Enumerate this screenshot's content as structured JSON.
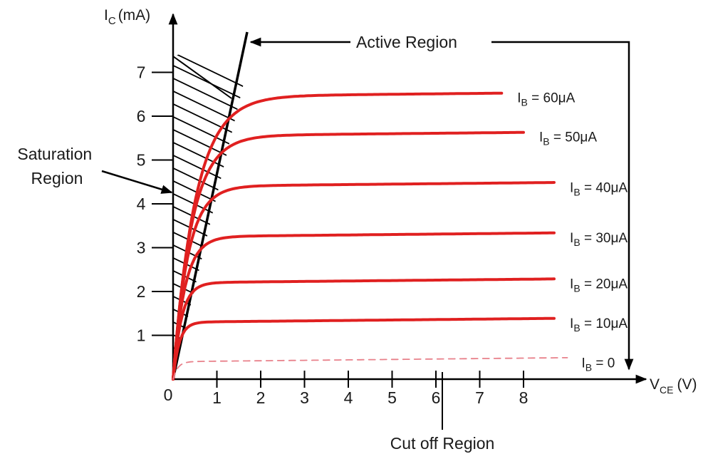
{
  "chart_data": {
    "type": "line",
    "xlabel": "VCE (V)",
    "xlabel_main": "V",
    "xlabel_sub": "CE",
    "xlabel_unit": "(V)",
    "ylabel": "IC (mA)",
    "ylabel_main": "I",
    "ylabel_sub": "C",
    "ylabel_unit": "(mA)",
    "origin_label": "0",
    "x_ticks": [
      "1",
      "2",
      "3",
      "4",
      "5",
      "6",
      "7",
      "8"
    ],
    "y_ticks": [
      "1",
      "2",
      "3",
      "4",
      "5",
      "6",
      "7"
    ],
    "xlim": [
      0,
      8
    ],
    "ylim": [
      0,
      7
    ],
    "grid": false,
    "legend": "none",
    "curve_color": "#e02020",
    "series": [
      {
        "name": "IB = 60μA",
        "label_main": "I",
        "label_sub": "B",
        "label_rest": " = 60μA",
        "ic_sat": 6.45,
        "knee_vce": 1.45,
        "vce_end": 7.5,
        "style": "solid"
      },
      {
        "name": "IB = 50μA",
        "label_main": "I",
        "label_sub": "B",
        "label_rest": " = 50μA",
        "ic_sat": 5.55,
        "knee_vce": 1.2,
        "vce_end": 8.0,
        "style": "solid"
      },
      {
        "name": "IB = 40μA",
        "label_main": "I",
        "label_sub": "B",
        "label_rest": " = 40μA",
        "ic_sat": 4.4,
        "knee_vce": 0.95,
        "vce_end": 8.7,
        "style": "solid"
      },
      {
        "name": "IB = 30μA",
        "label_main": "I",
        "label_sub": "B",
        "label_rest": " = 30μA",
        "ic_sat": 3.25,
        "knee_vce": 0.75,
        "vce_end": 8.7,
        "style": "solid"
      },
      {
        "name": "IB = 20μA",
        "label_main": "I",
        "label_sub": "B",
        "label_rest": " = 20μA",
        "ic_sat": 2.2,
        "knee_vce": 0.55,
        "vce_end": 8.7,
        "style": "solid"
      },
      {
        "name": "IB = 10μA",
        "label_main": "I",
        "label_sub": "B",
        "label_rest": " = 10μA",
        "ic_sat": 1.3,
        "knee_vce": 0.4,
        "vce_end": 8.7,
        "style": "solid"
      },
      {
        "name": "IB = 0",
        "label_main": "I",
        "label_sub": "B",
        "label_rest": " = 0",
        "ic_sat": 0.4,
        "knee_vce": 0.3,
        "vce_end": 9.0,
        "style": "dashed"
      }
    ],
    "annotations": [
      {
        "id": "active-region",
        "text": "Active Region"
      },
      {
        "id": "saturation-region",
        "lines": [
          "Saturation",
          "Region"
        ]
      },
      {
        "id": "cutoff-region",
        "text": "Cut off Region"
      }
    ]
  }
}
